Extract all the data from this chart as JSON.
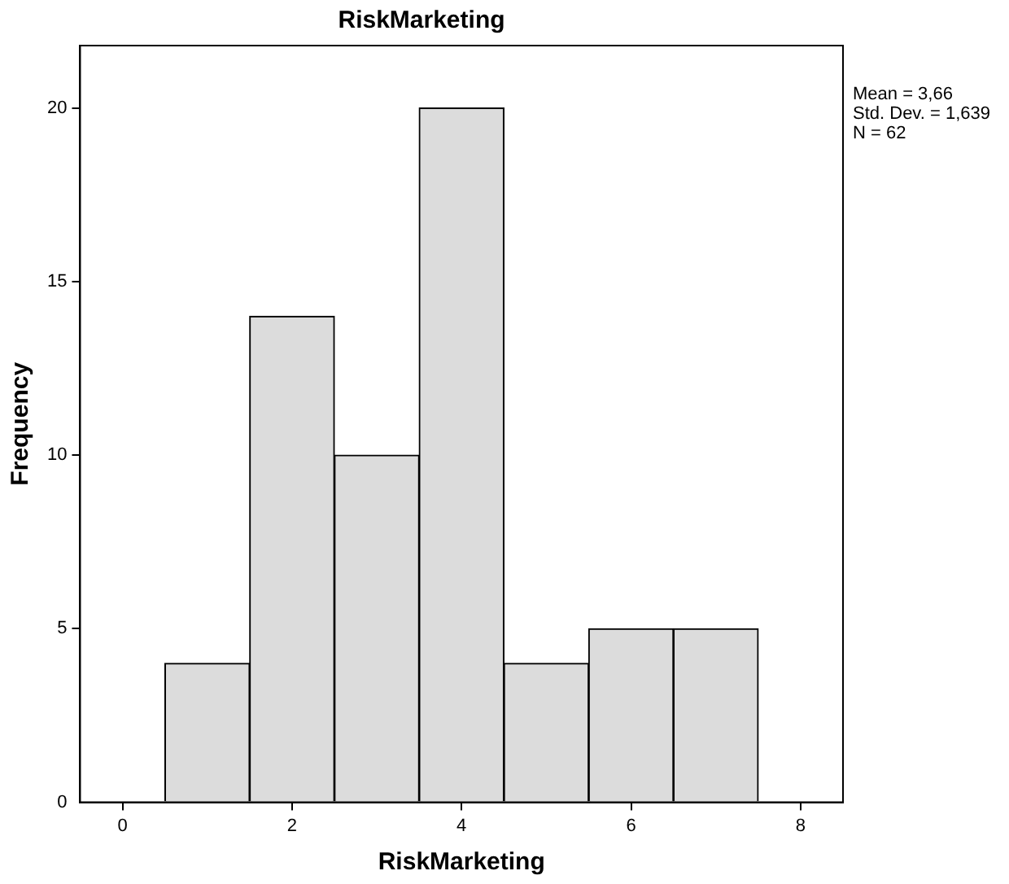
{
  "chart_data": {
    "type": "histogram",
    "title": "RiskMarketing",
    "xlabel": "RiskMarketing",
    "ylabel": "Frequency",
    "bins": [
      0.5,
      1.5,
      2.5,
      3.5,
      4.5,
      5.5,
      6.5,
      7.5
    ],
    "values": [
      4,
      14,
      10,
      20,
      4,
      5,
      5
    ],
    "color": "#dcdcdc",
    "xlim": [
      -0.5,
      8.5
    ],
    "xticks": [
      0,
      2,
      4,
      6,
      8
    ],
    "ylim": [
      0,
      21.8
    ],
    "yticks": [
      0,
      5,
      10,
      15,
      20
    ],
    "grid": false,
    "legend": false,
    "annotations": [
      "Mean = 3,66",
      "Std. Dev. = 1,639",
      "N = 62"
    ]
  }
}
